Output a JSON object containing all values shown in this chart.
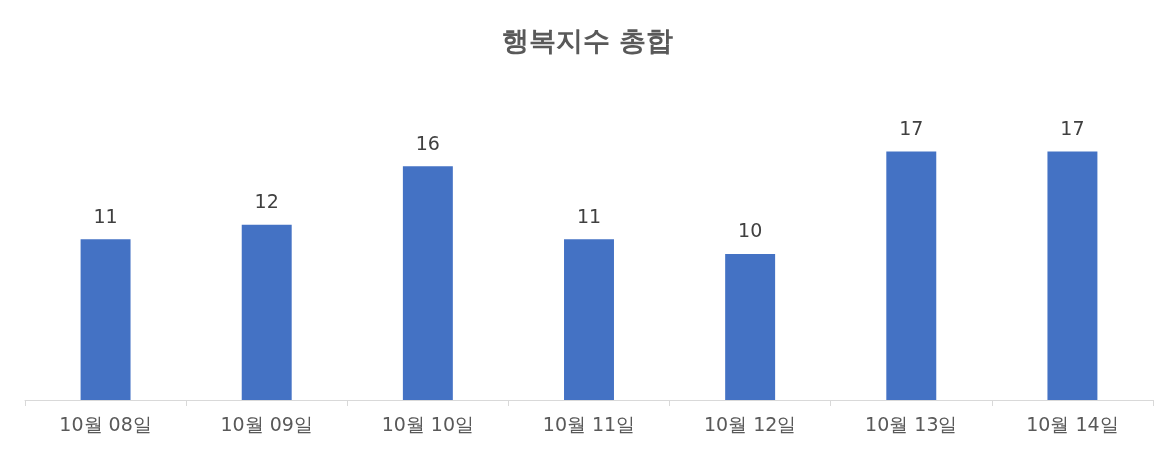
{
  "chart_data": {
    "type": "bar",
    "title": "행복지수 총합",
    "categories": [
      "10월 08일",
      "10월 09일",
      "10월 10일",
      "10월 11일",
      "10월 12일",
      "10월 13일",
      "10월 14일"
    ],
    "values": [
      11,
      12,
      16,
      11,
      10,
      17,
      17
    ],
    "color": "#4472c4",
    "data_labels": true,
    "grid": false,
    "tick_labels": "x"
  }
}
